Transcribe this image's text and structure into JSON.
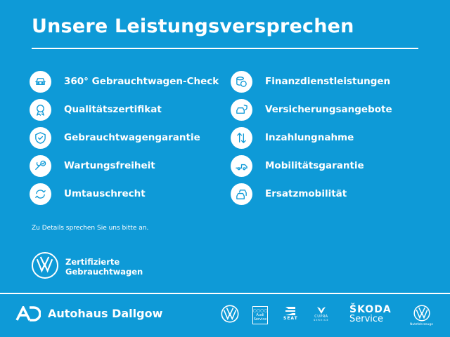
{
  "title": "Unsere Leistungsversprechen",
  "left_items": [
    {
      "label": "360° Gebrauchtwagen-Check",
      "icon": "car-check-icon"
    },
    {
      "label": "Qualitätszertifikat",
      "icon": "award-icon"
    },
    {
      "label": "Gebrauchtwagengarantie",
      "icon": "shield-check-icon"
    },
    {
      "label": "Wartungsfreiheit",
      "icon": "wrench-check-icon"
    },
    {
      "label": "Umtauschrecht",
      "icon": "exchange-icon"
    }
  ],
  "right_items": [
    {
      "label": "Finanzdienstleistungen",
      "icon": "coins-icon"
    },
    {
      "label": "Versicherungsangebote",
      "icon": "car-insurance-icon"
    },
    {
      "label": "Inzahlungnahme",
      "icon": "arrows-updown-icon"
    },
    {
      "label": "Mobilitätsgarantie",
      "icon": "towing-icon"
    },
    {
      "label": "Ersatzmobilität",
      "icon": "cars-icon"
    }
  ],
  "note": "Zu Details sprechen Sie uns bitte an.",
  "certified": {
    "line1": "Zertifizierte",
    "line2": "Gebrauchtwagen"
  },
  "footer": {
    "dealer": "Autohaus Dallgow",
    "brands": {
      "audi_line1": "Audi",
      "audi_line2": "Service",
      "seat": "SEAT",
      "cupra": "CUPRA",
      "cupra_sub": "SERVICE",
      "skoda": "ŠKODA",
      "skoda_sub": "Service",
      "vwn": "Nutzfahrzeuge"
    }
  },
  "colors": {
    "background": "#0e9ad7",
    "foreground": "#ffffff"
  }
}
